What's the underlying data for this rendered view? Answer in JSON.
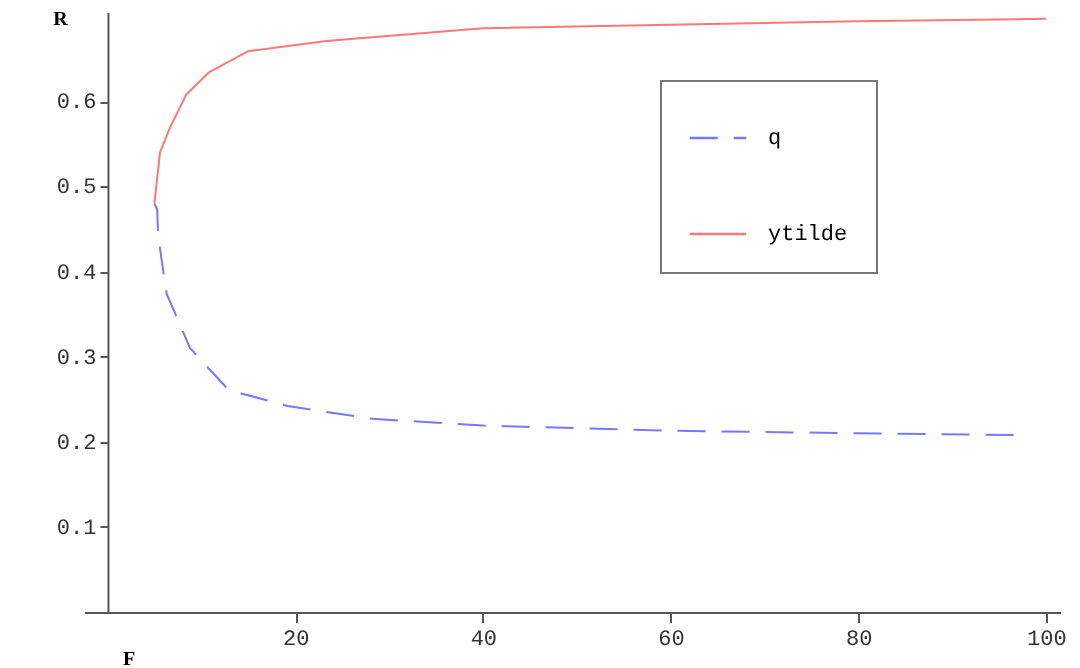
{
  "chart_data": {
    "type": "line",
    "xlabel": "F",
    "ylabel": "R",
    "xlim": [
      -2.5,
      101.5
    ],
    "ylim": [
      0,
      0.705
    ],
    "xticks": [
      20,
      40,
      60,
      80,
      100
    ],
    "yticks": [
      0.1,
      0.2,
      0.3,
      0.4,
      0.5,
      0.6
    ],
    "grid": false,
    "legend": "top right",
    "marker": "none",
    "series": [
      {
        "name": "q",
        "color": "#7777ff",
        "line_style": "dashed",
        "x": [
          5.0,
          5.3,
          5.4,
          6.3,
          8.8,
          12.9,
          19.2,
          28.2,
          40,
          60,
          80,
          97
        ],
        "values": [
          0.48,
          0.473,
          0.442,
          0.374,
          0.31,
          0.261,
          0.242,
          0.227,
          0.219,
          0.213,
          0.21,
          0.208
        ]
      },
      {
        "name": "ytilde",
        "color": "#ff7777",
        "line_style": "solid",
        "x": [
          5.0,
          5.07,
          5.6,
          6.7,
          8.4,
          10.8,
          15,
          23.3,
          40,
          60,
          80,
          100
        ],
        "values": [
          0.48,
          0.487,
          0.54,
          0.57,
          0.608,
          0.634,
          0.659,
          0.671,
          0.686,
          0.69,
          0.694,
          0.697
        ]
      }
    ]
  }
}
